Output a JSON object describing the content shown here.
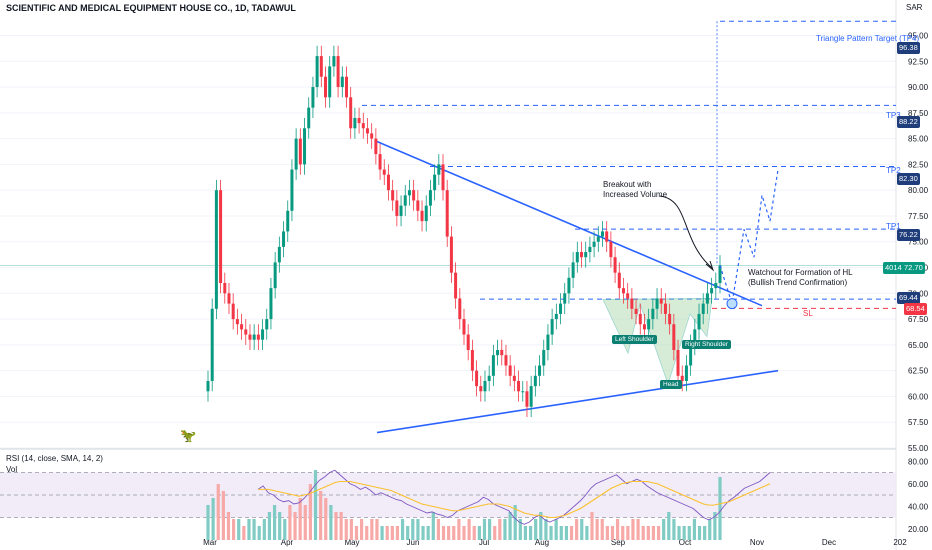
{
  "title": "SCIENTIFIC AND MEDICAL EQUIPMENT HOUSE CO., 1D, TADAWUL",
  "currency": "SAR",
  "rsi_legend": "RSI (14, close, SMA, 14, 2)",
  "vol_legend": "Vol",
  "colors": {
    "up": "#089981",
    "down": "#f23645",
    "trend": "#2962ff",
    "dash_blue": "#2962ff",
    "dash_red": "#f23645",
    "label_dark": "#131722",
    "rsi_line": "#7e57c2",
    "rsi_ma": "#fbc02d",
    "rsi_band": "#ede7f6",
    "volume_up": "#80cbc4",
    "volume_down": "#f7a9a7"
  },
  "chart_data": {
    "type": "candlestick",
    "y_axis": {
      "min": 55.0,
      "max": 96.5,
      "ticks": [
        55.0,
        57.5,
        60.0,
        62.5,
        65.0,
        67.5,
        70.0,
        72.5,
        75.0,
        77.5,
        80.0,
        82.5,
        85.0,
        87.5,
        90.0,
        92.5,
        95.0
      ]
    },
    "x_axis": {
      "ticks": [
        "Mar",
        "Apr",
        "May",
        "Jun",
        "Jul",
        "Aug",
        "Sep",
        "Oct",
        "Nov",
        "Dec",
        "202"
      ]
    },
    "levels": [
      {
        "name": "Triangle Pattern Target (TP4)",
        "value": 96.38,
        "label": "96.38"
      },
      {
        "name": "TP3",
        "value": 88.22,
        "label": "88.22"
      },
      {
        "name": "TP2",
        "value": 82.3,
        "label": "82.30"
      },
      {
        "name": "TP1",
        "value": 76.22,
        "label": "76.22"
      },
      {
        "name": "",
        "value": 69.44,
        "label": "69.44"
      },
      {
        "name": "SL",
        "value": 68.54,
        "label": "68.54"
      }
    ],
    "current_price": {
      "value": 72.7,
      "label": "72.70",
      "volume": "4014"
    },
    "annotations": [
      "Breakout with",
      "Increased Volume",
      "Watchout for Formation of HL",
      "(Bullish Trend Confirmation)",
      "Left Shoulder",
      "Head",
      "Right Shoulder"
    ],
    "rsi_axis": {
      "ticks": [
        20.0,
        40.0,
        60.0,
        80.0
      ]
    },
    "closes": [
      61.5,
      68.5,
      80.0,
      71.0,
      70.0,
      69.0,
      67.5,
      67.0,
      66.5,
      66.0,
      65.5,
      66.0,
      65.5,
      66.5,
      67.5,
      70.5,
      73.0,
      74.5,
      76.0,
      78.0,
      82.0,
      85.0,
      82.5,
      86.0,
      88.0,
      90.0,
      93.0,
      91.0,
      89.0,
      92.0,
      93.0,
      90.0,
      91.0,
      89.0,
      86.0,
      87.0,
      86.5,
      86.0,
      85.5,
      85.0,
      83.5,
      82.0,
      81.5,
      80.0,
      79.0,
      77.5,
      78.5,
      79.5,
      80.0,
      79.0,
      78.0,
      77.0,
      78.5,
      80.0,
      81.5,
      82.5,
      80.0,
      75.5,
      72.0,
      69.5,
      67.5,
      66.0,
      64.5,
      62.5,
      61.0,
      60.5,
      61.5,
      62.0,
      64.0,
      64.5,
      64.0,
      63.0,
      62.0,
      61.5,
      60.5,
      60.5,
      59.0,
      61.0,
      62.0,
      63.0,
      64.5,
      66.0,
      67.5,
      68.0,
      69.0,
      70.0,
      71.5,
      73.0,
      74.0,
      73.5,
      74.0,
      74.5,
      75.0,
      75.5,
      76.0,
      75.0,
      73.5,
      72.0,
      70.5,
      70.0,
      69.5,
      68.5,
      68.0,
      67.0,
      66.5,
      67.5,
      68.5,
      69.5,
      69.0,
      68.0,
      67.0,
      64.5,
      62.0,
      61.5,
      63.0,
      65.0,
      66.5,
      68.0,
      69.0,
      70.0,
      70.5,
      71.0,
      72.7
    ],
    "rsi": [
      55,
      58,
      52,
      50,
      46,
      44,
      45,
      42,
      43,
      47,
      52,
      58,
      63,
      66,
      70,
      72,
      68,
      64,
      60,
      58,
      55,
      57,
      54,
      50,
      52,
      50,
      48,
      46,
      45,
      42,
      40,
      38,
      36,
      34,
      35,
      33,
      32,
      30,
      32,
      36,
      38,
      40,
      42,
      44,
      48,
      46,
      42,
      40,
      38,
      36,
      30,
      26,
      24,
      26,
      30,
      32,
      28,
      26,
      28,
      30,
      33,
      37,
      41,
      45,
      50,
      56,
      60,
      62,
      64,
      66,
      68,
      64,
      60,
      62,
      64,
      62,
      58,
      55,
      52,
      50,
      48,
      46,
      44,
      42,
      40,
      38,
      34,
      30,
      28,
      30,
      34,
      40,
      45,
      48,
      52,
      56,
      58,
      60,
      62,
      66,
      70
    ],
    "rsi_ma": [
      55,
      55,
      55,
      54,
      53,
      52,
      51,
      50,
      49,
      50,
      51,
      53,
      55,
      57,
      59,
      61,
      62,
      62,
      62,
      61,
      60,
      59,
      58,
      57,
      56,
      55,
      54,
      52,
      50,
      48,
      46,
      44,
      42,
      41,
      40,
      39,
      38,
      37,
      36,
      36,
      37,
      38,
      39,
      40,
      41,
      42,
      42,
      42,
      41,
      40,
      38,
      36,
      34,
      33,
      32,
      32,
      31,
      30,
      30,
      31,
      32,
      34,
      36,
      38,
      41,
      44,
      47,
      50,
      53,
      56,
      58,
      60,
      61,
      62,
      62,
      62,
      62,
      61,
      60,
      58,
      56,
      54,
      52,
      50,
      48,
      46,
      44,
      42,
      41,
      41,
      42,
      43,
      44,
      46,
      48,
      50,
      52,
      54,
      56,
      58,
      60
    ],
    "volume": [
      5,
      6,
      8,
      7,
      4,
      3,
      3,
      2,
      3,
      3,
      2,
      3,
      4,
      5,
      4,
      3,
      5,
      4,
      6,
      5,
      8,
      10,
      7,
      6,
      5,
      4,
      4,
      3,
      3,
      2,
      3,
      2,
      3,
      3,
      2,
      2,
      2,
      2,
      3,
      2,
      3,
      3,
      2,
      2,
      4,
      3,
      2,
      2,
      2,
      3,
      2,
      3,
      2,
      2,
      3,
      3,
      2,
      3,
      3,
      4,
      5,
      3,
      2,
      2,
      3,
      4,
      3,
      2,
      3,
      2,
      2,
      2,
      3,
      3,
      2,
      4,
      3,
      3,
      2,
      2,
      3,
      2,
      2,
      3,
      3,
      2,
      2,
      2,
      2,
      3,
      4,
      3,
      2,
      2,
      2,
      3,
      2,
      2,
      3,
      4,
      9
    ]
  }
}
